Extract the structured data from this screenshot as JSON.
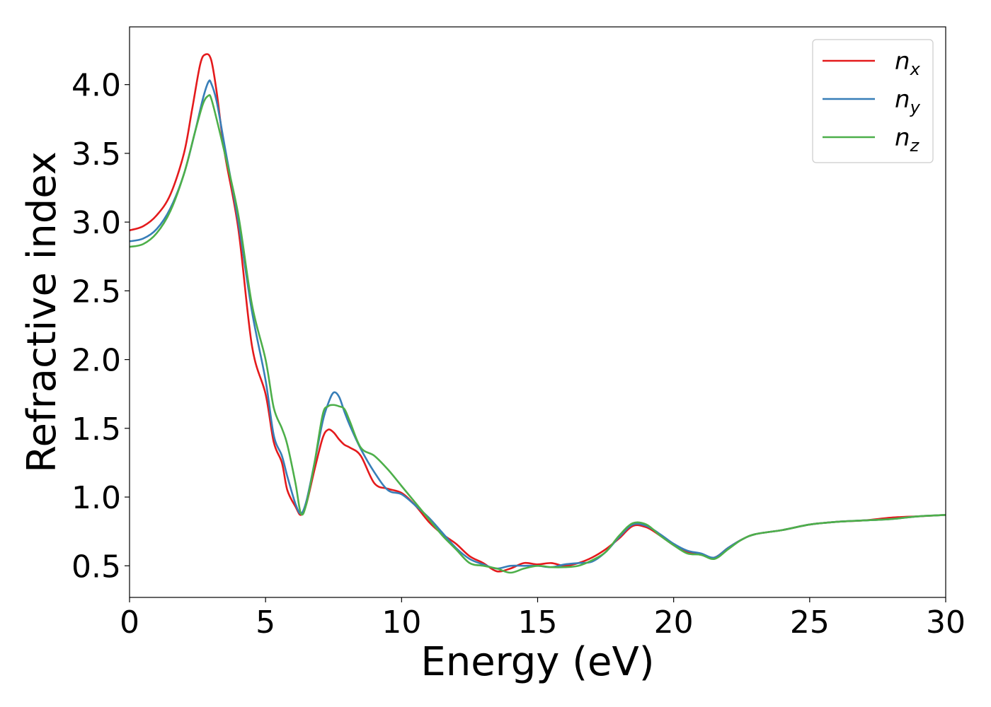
{
  "chart_data": {
    "type": "line",
    "title": "",
    "xlabel": "Energy (eV)",
    "ylabel": "Refractive index",
    "xlim": [
      0,
      30
    ],
    "ylim": [
      0.27,
      4.42
    ],
    "xticks": [
      0,
      5,
      10,
      15,
      20,
      25,
      30
    ],
    "xtick_labels": [
      "0",
      "5",
      "10",
      "15",
      "20",
      "25",
      "30"
    ],
    "yticks": [
      0.5,
      1.0,
      1.5,
      2.0,
      2.5,
      3.0,
      3.5,
      4.0
    ],
    "ytick_labels": [
      "0.5",
      "1.0",
      "1.5",
      "2.0",
      "2.5",
      "3.0",
      "3.5",
      "4.0"
    ],
    "grid": false,
    "legend_position": "top-right",
    "series": [
      {
        "name": "n",
        "subscript": "x",
        "color": "#e41a1c",
        "x": [
          0,
          0.5,
          1,
          1.5,
          2,
          2.3,
          2.6,
          2.8,
          3.0,
          3.2,
          3.5,
          4.0,
          4.5,
          5.0,
          5.3,
          5.6,
          5.8,
          6.1,
          6.3,
          6.5,
          6.8,
          7.1,
          7.3,
          7.5,
          7.7,
          7.9,
          8.1,
          8.5,
          9.0,
          9.5,
          10.0,
          10.5,
          11.0,
          11.5,
          12.0,
          12.5,
          13.0,
          13.5,
          14.0,
          14.5,
          15.0,
          15.5,
          16.0,
          16.5,
          17.0,
          17.5,
          18.0,
          18.5,
          19.0,
          19.5,
          20.0,
          20.5,
          21.0,
          21.5,
          22.0,
          22.5,
          23.0,
          24.0,
          25.0,
          26.0,
          27.0,
          28.0,
          29.0,
          30.0
        ],
        "values": [
          2.94,
          2.97,
          3.05,
          3.2,
          3.5,
          3.82,
          4.15,
          4.22,
          4.18,
          3.95,
          3.5,
          2.95,
          2.1,
          1.75,
          1.4,
          1.25,
          1.05,
          0.93,
          0.87,
          0.95,
          1.2,
          1.43,
          1.49,
          1.47,
          1.42,
          1.38,
          1.36,
          1.3,
          1.1,
          1.06,
          1.03,
          0.94,
          0.82,
          0.73,
          0.66,
          0.57,
          0.52,
          0.46,
          0.48,
          0.52,
          0.51,
          0.52,
          0.5,
          0.52,
          0.56,
          0.62,
          0.7,
          0.79,
          0.78,
          0.72,
          0.65,
          0.6,
          0.58,
          0.56,
          0.63,
          0.69,
          0.73,
          0.76,
          0.8,
          0.82,
          0.83,
          0.85,
          0.86,
          0.87
        ]
      },
      {
        "name": "n",
        "subscript": "y",
        "color": "#377eb8",
        "x": [
          0,
          0.5,
          1,
          1.5,
          2,
          2.4,
          2.7,
          2.9,
          3.0,
          3.2,
          3.5,
          4.0,
          4.5,
          5.0,
          5.3,
          5.6,
          5.8,
          6.1,
          6.3,
          6.5,
          6.8,
          7.1,
          7.3,
          7.5,
          7.7,
          7.9,
          8.1,
          8.5,
          9.0,
          9.5,
          10.0,
          10.5,
          11.0,
          11.5,
          12.0,
          12.5,
          13.0,
          13.5,
          14.0,
          14.5,
          15.0,
          15.5,
          16.0,
          16.5,
          17.0,
          17.5,
          18.0,
          18.5,
          19.0,
          19.5,
          20.0,
          20.5,
          21.0,
          21.5,
          22.0,
          22.5,
          23.0,
          24.0,
          25.0,
          26.0,
          27.0,
          28.0,
          29.0,
          30.0
        ],
        "values": [
          2.86,
          2.88,
          2.95,
          3.1,
          3.35,
          3.65,
          3.9,
          4.02,
          4.01,
          3.88,
          3.55,
          3.0,
          2.35,
          1.85,
          1.45,
          1.3,
          1.15,
          0.95,
          0.88,
          0.97,
          1.25,
          1.55,
          1.68,
          1.76,
          1.73,
          1.62,
          1.52,
          1.35,
          1.18,
          1.05,
          1.02,
          0.94,
          0.85,
          0.74,
          0.63,
          0.55,
          0.51,
          0.48,
          0.5,
          0.5,
          0.5,
          0.49,
          0.51,
          0.52,
          0.53,
          0.6,
          0.71,
          0.8,
          0.79,
          0.73,
          0.66,
          0.61,
          0.59,
          0.56,
          0.63,
          0.69,
          0.73,
          0.76,
          0.8,
          0.82,
          0.83,
          0.84,
          0.86,
          0.87
        ]
      },
      {
        "name": "n",
        "subscript": "z",
        "color": "#4daf4a",
        "x": [
          0,
          0.5,
          1,
          1.5,
          2,
          2.4,
          2.7,
          2.9,
          3.0,
          3.2,
          3.5,
          4.0,
          4.5,
          5.0,
          5.3,
          5.6,
          5.8,
          6.1,
          6.3,
          6.5,
          6.8,
          7.1,
          7.3,
          7.5,
          7.7,
          7.9,
          8.1,
          8.5,
          9.0,
          9.5,
          10.0,
          10.5,
          11.0,
          11.5,
          12.0,
          12.5,
          13.0,
          13.5,
          14.0,
          14.5,
          15.0,
          15.5,
          16.0,
          16.5,
          17.0,
          17.5,
          18.0,
          18.5,
          19.0,
          19.5,
          20.0,
          20.5,
          21.0,
          21.5,
          22.0,
          22.5,
          23.0,
          24.0,
          25.0,
          26.0,
          27.0,
          28.0,
          29.0,
          30.0
        ],
        "values": [
          2.82,
          2.84,
          2.92,
          3.08,
          3.35,
          3.65,
          3.86,
          3.92,
          3.9,
          3.75,
          3.5,
          3.05,
          2.4,
          2.0,
          1.65,
          1.5,
          1.38,
          1.1,
          0.88,
          0.95,
          1.25,
          1.6,
          1.66,
          1.67,
          1.66,
          1.64,
          1.55,
          1.36,
          1.3,
          1.2,
          1.08,
          0.96,
          0.84,
          0.72,
          0.62,
          0.52,
          0.5,
          0.48,
          0.45,
          0.48,
          0.5,
          0.49,
          0.49,
          0.5,
          0.54,
          0.6,
          0.72,
          0.81,
          0.8,
          0.72,
          0.65,
          0.59,
          0.58,
          0.55,
          0.62,
          0.69,
          0.73,
          0.76,
          0.8,
          0.82,
          0.83,
          0.84,
          0.86,
          0.87
        ]
      }
    ]
  }
}
